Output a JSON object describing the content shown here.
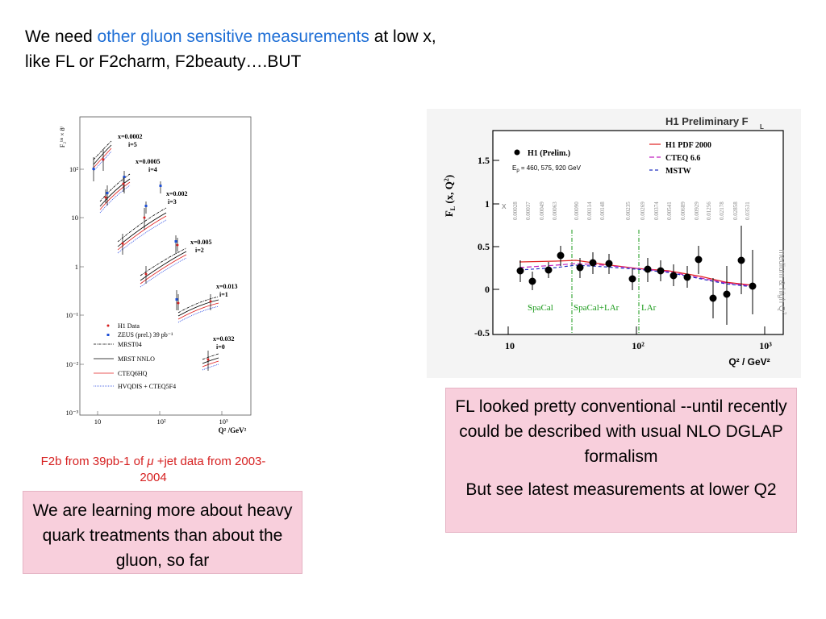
{
  "heading": {
    "part1": "We need ",
    "highlight": "other gluon sensitive measurements",
    "part2": " at low x, like FL or F2charm, F2beauty….BUT"
  },
  "left_plot": {
    "y_axis_label": "F₂ᵇᵇ × 8ⁱ",
    "y_ticks": [
      "10²",
      "10",
      "1",
      "10⁻¹",
      "10⁻²",
      "10⁻³"
    ],
    "x_ticks": [
      "10",
      "10²",
      "10³"
    ],
    "x_axis_label": "Q² /GeV²",
    "bins": [
      {
        "x": "x=0.0002",
        "i": "i=5"
      },
      {
        "x": "x=0.0005",
        "i": "i=4"
      },
      {
        "x": "x=0.002",
        "i": "i=3"
      },
      {
        "x": "x=0.005",
        "i": "i=2"
      },
      {
        "x": "x=0.013",
        "i": "i=1"
      },
      {
        "x": "x=0.032",
        "i": "i=0"
      }
    ],
    "legend": [
      {
        "label": "H1 Data",
        "color": "#d62020",
        "style": "dot"
      },
      {
        "label": "ZEUS (prel.) 39 pb⁻¹",
        "color": "#1e4fd6",
        "style": "square"
      },
      {
        "label": "MRST04",
        "color": "#000000",
        "style": "dashdot"
      },
      {
        "label": "MRST NNLO",
        "color": "#000000",
        "style": "solid"
      },
      {
        "label": "CTEQ6HQ",
        "color": "#e02020",
        "style": "solid"
      },
      {
        "label": "HVQDIS + CTEQ5F4",
        "color": "#2040e0",
        "style": "dotted"
      }
    ]
  },
  "left_caption": {
    "pre": "F2b from 39pb-1 of ",
    "mu": "μ",
    "post": " +jet data from 2003-2004"
  },
  "left_box": "We are learning more about heavy quark treatments than about the gluon, so far",
  "right_plot": {
    "title": "H1 Preliminary F",
    "title_sub": "L",
    "y_label": "F",
    "y_label_sub": "L",
    "y_label_rest": " (x, Q",
    "y_label_end": ")",
    "legend_left": "H1 (Prelim.)",
    "beam_energies": "E",
    "beam_energies_rest": " = 460, 575, 920 GeV",
    "x_label": "x",
    "legend_right": [
      {
        "label": "H1 PDF 2000",
        "color": "#e02020",
        "dash": ""
      },
      {
        "label": "CTEQ 6.6",
        "color": "#c020c0",
        "dash": "6,3"
      },
      {
        "label": "MSTW",
        "color": "#2030c0",
        "dash": "4,3"
      }
    ],
    "x_values": [
      "0.00028",
      "0.00037",
      "0.00049",
      "0.00063",
      "0.00090",
      "0.00114",
      "0.00148",
      "0.00235",
      "0.00269",
      "0.00374",
      "0.00541",
      "0.00689",
      "0.00929",
      "0.01256",
      "0.02178",
      "0.02858",
      "0.03531"
    ],
    "regions": [
      "SpaCal",
      "SpaCal+LAr",
      "LAr"
    ],
    "side_label": "medium & high Q",
    "y_ticks": [
      "1.5",
      "1",
      "0.5",
      "0",
      "-0.5"
    ],
    "x_ticks": [
      "10",
      "10²",
      "10³"
    ],
    "x_axis": "Q² / GeV²"
  },
  "right_box": {
    "p1": "FL looked pretty conventional --until recently could be described with usual NLO DGLAP formalism",
    "p2": "But see latest measurements at lower Q2"
  }
}
